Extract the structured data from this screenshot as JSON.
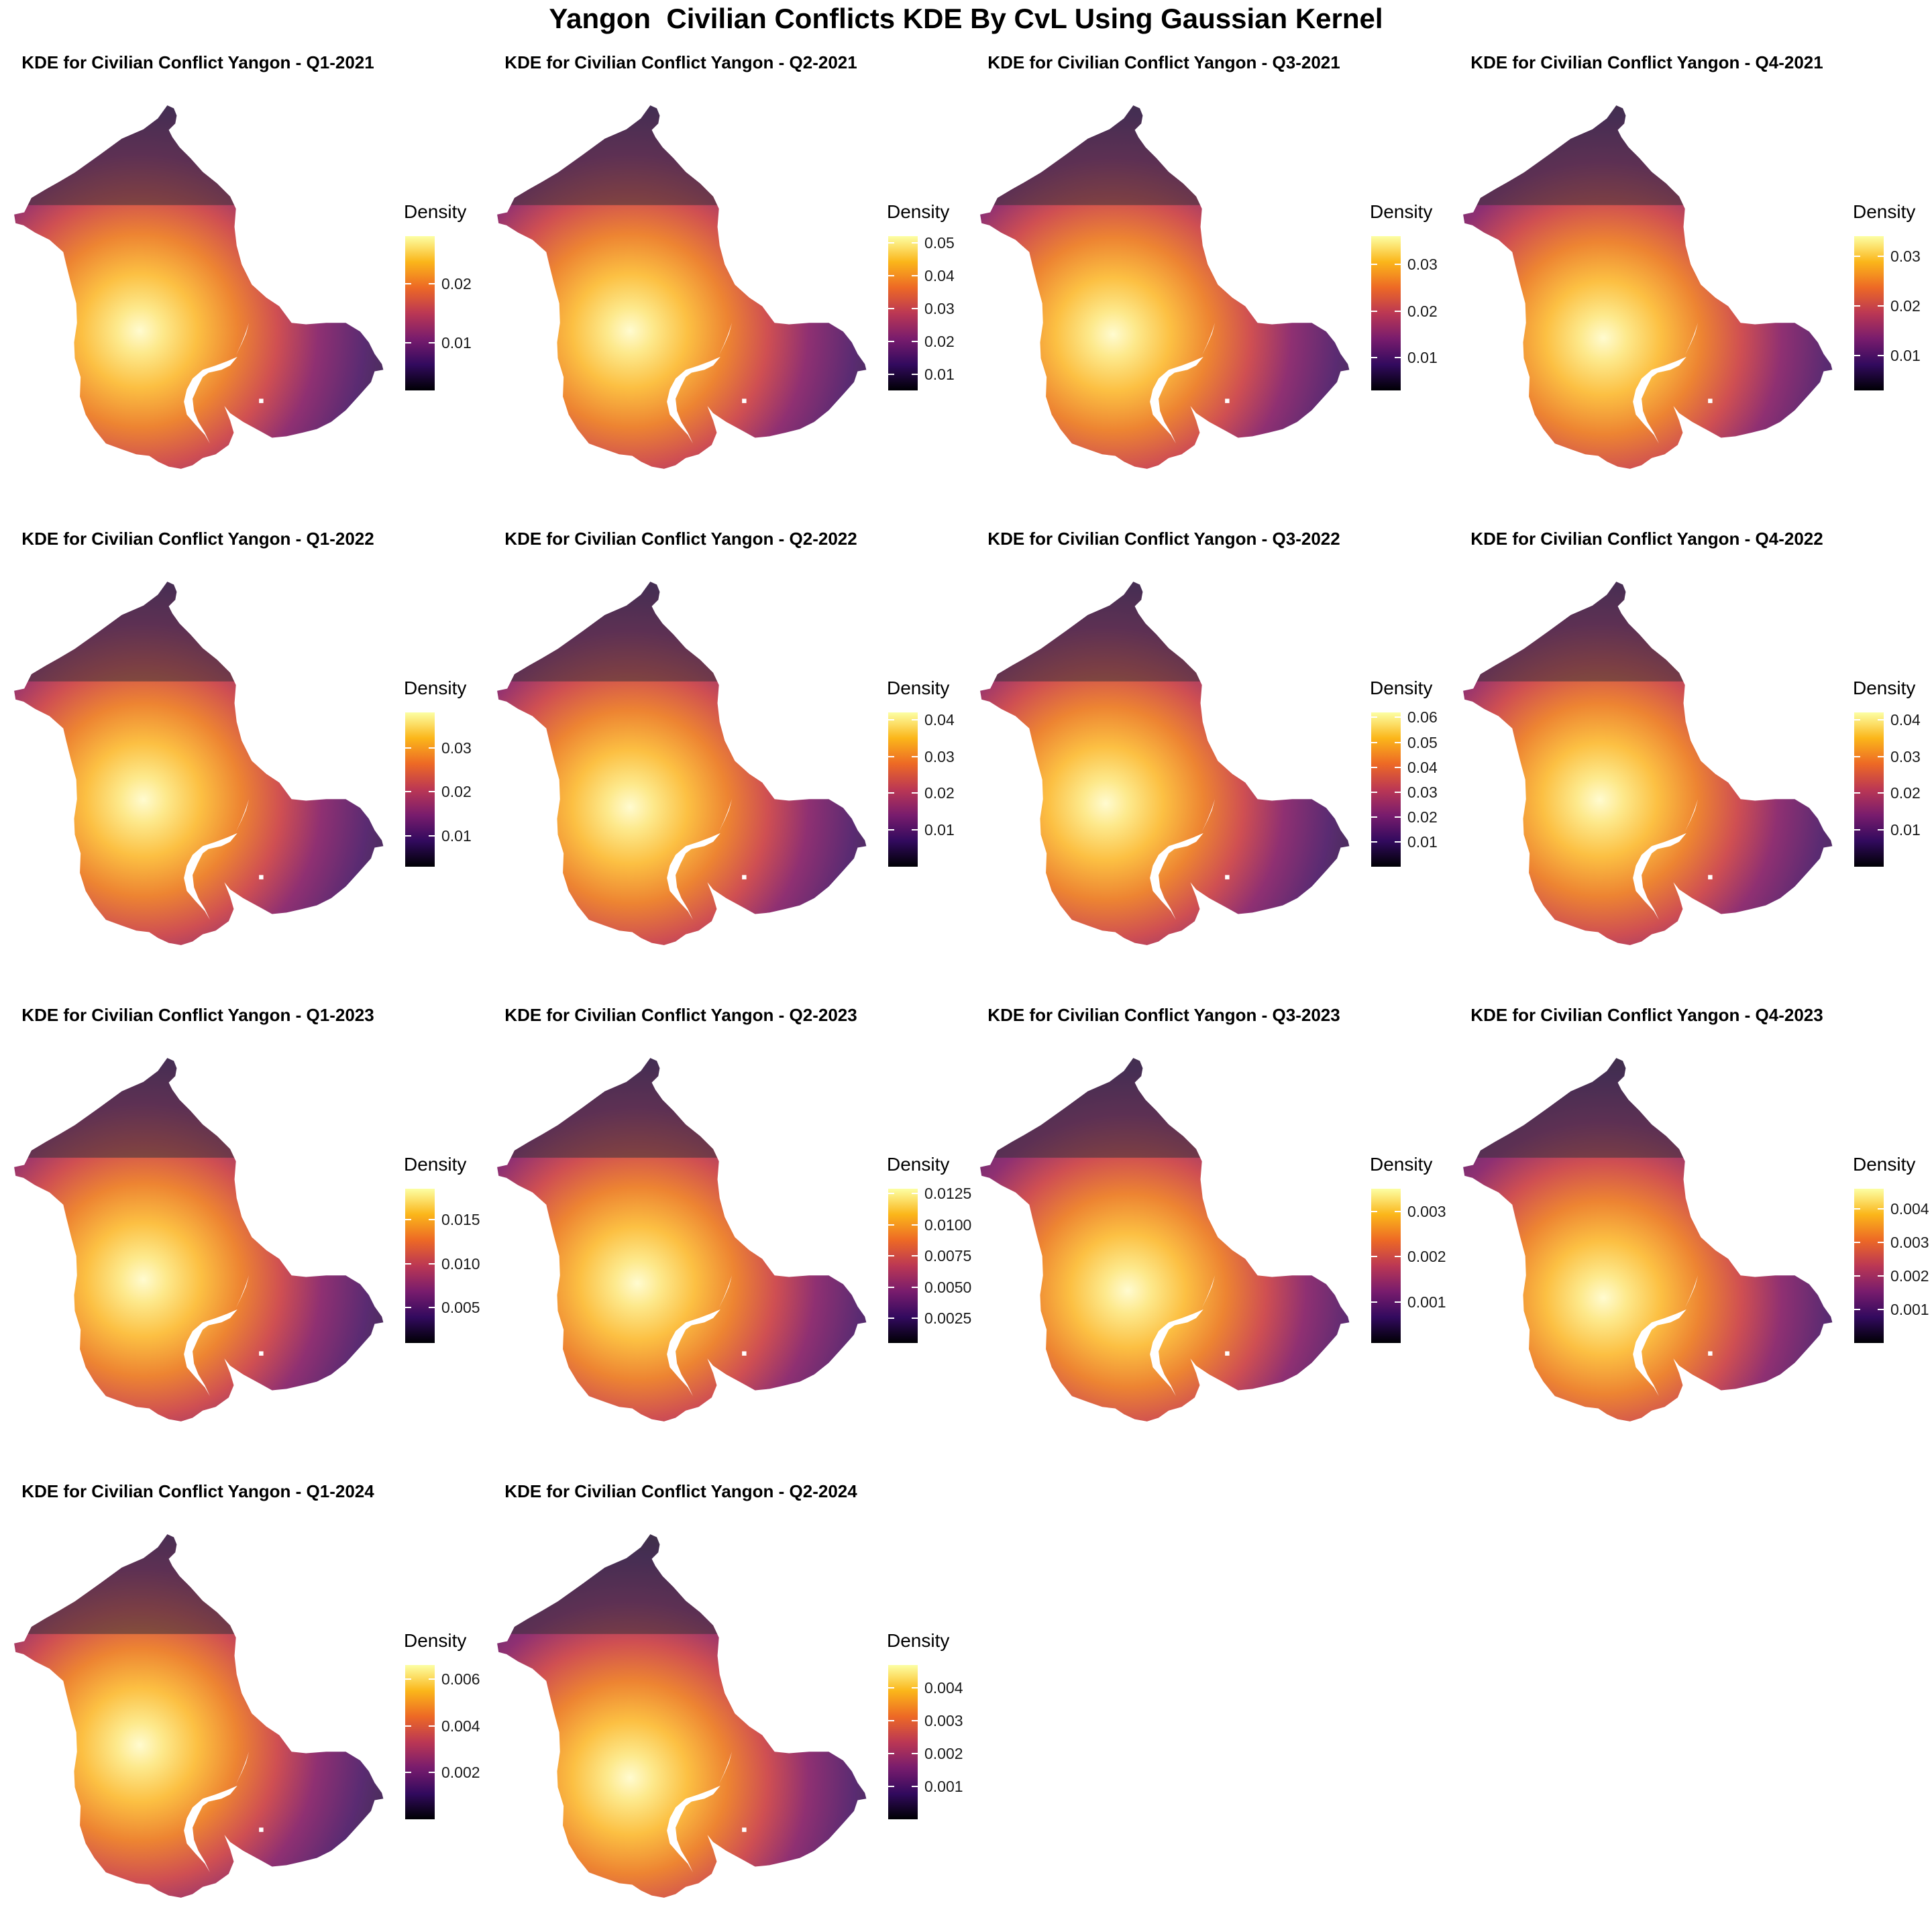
{
  "title": "Yangon  Civilian Conflicts KDE By CvL Using Gaussian Kernel",
  "colors": {
    "palette": [
      "#000004",
      "#320a5e",
      "#781c6d",
      "#bb3754",
      "#ed6925",
      "#fbb61a",
      "#fcffa4"
    ],
    "background": "#ffffff"
  },
  "chart_data": [
    {
      "type": "heatmap",
      "title": "KDE for Civilian Conflict Yangon - Q1-2021",
      "legend_title": "Density",
      "ticks": [
        "0.01",
        "0.02"
      ],
      "range": [
        0.002,
        0.028
      ],
      "hotspot": [
        0.34,
        0.62
      ]
    },
    {
      "type": "heatmap",
      "title": "KDE for Civilian Conflict Yangon - Q2-2021",
      "legend_title": "Density",
      "ticks": [
        "0.01",
        "0.02",
        "0.03",
        "0.04",
        "0.05"
      ],
      "range": [
        0.005,
        0.052
      ],
      "hotspot": [
        0.36,
        0.62
      ]
    },
    {
      "type": "heatmap",
      "title": "KDE for Civilian Conflict Yangon - Q3-2021",
      "legend_title": "Density",
      "ticks": [
        "0.01",
        "0.02",
        "0.03"
      ],
      "range": [
        0.003,
        0.036
      ],
      "hotspot": [
        0.36,
        0.63
      ]
    },
    {
      "type": "heatmap",
      "title": "KDE for Civilian Conflict Yangon - Q4-2021",
      "legend_title": "Density",
      "ticks": [
        "0.01",
        "0.02",
        "0.03"
      ],
      "range": [
        0.003,
        0.034
      ],
      "hotspot": [
        0.38,
        0.64
      ]
    },
    {
      "type": "heatmap",
      "title": "KDE for Civilian Conflict Yangon - Q1-2022",
      "legend_title": "Density",
      "ticks": [
        "0.01",
        "0.02",
        "0.03"
      ],
      "range": [
        0.003,
        0.038
      ],
      "hotspot": [
        0.35,
        0.6
      ]
    },
    {
      "type": "heatmap",
      "title": "KDE for Civilian Conflict Yangon - Q2-2022",
      "legend_title": "Density",
      "ticks": [
        "0.01",
        "0.02",
        "0.03",
        "0.04"
      ],
      "range": [
        0.0,
        0.042
      ],
      "hotspot": [
        0.36,
        0.62
      ]
    },
    {
      "type": "heatmap",
      "title": "KDE for Civilian Conflict Yangon - Q3-2022",
      "legend_title": "Density",
      "ticks": [
        "0.01",
        "0.02",
        "0.03",
        "0.04",
        "0.05",
        "0.06"
      ],
      "range": [
        0.0,
        0.062
      ],
      "hotspot": [
        0.34,
        0.61
      ]
    },
    {
      "type": "heatmap",
      "title": "KDE for Civilian Conflict Yangon - Q4-2022",
      "legend_title": "Density",
      "ticks": [
        "0.01",
        "0.02",
        "0.03",
        "0.04"
      ],
      "range": [
        0.0,
        0.042
      ],
      "hotspot": [
        0.37,
        0.6
      ]
    },
    {
      "type": "heatmap",
      "title": "KDE for Civilian Conflict Yangon - Q1-2023",
      "legend_title": "Density",
      "ticks": [
        "0.005",
        "0.010",
        "0.015"
      ],
      "range": [
        0.001,
        0.0185
      ],
      "hotspot": [
        0.35,
        0.61
      ]
    },
    {
      "type": "heatmap",
      "title": "KDE for Civilian Conflict Yangon - Q2-2023",
      "legend_title": "Density",
      "ticks": [
        "0.0025",
        "0.0050",
        "0.0075",
        "0.0100",
        "0.0125"
      ],
      "range": [
        0.0005,
        0.0129
      ],
      "hotspot": [
        0.38,
        0.62
      ]
    },
    {
      "type": "heatmap",
      "title": "KDE for Civilian Conflict Yangon - Q3-2023",
      "legend_title": "Density",
      "ticks": [
        "0.001",
        "0.002",
        "0.003"
      ],
      "range": [
        0.0001,
        0.0035
      ],
      "hotspot": [
        0.4,
        0.64
      ]
    },
    {
      "type": "heatmap",
      "title": "KDE for Civilian Conflict Yangon - Q4-2023",
      "legend_title": "Density",
      "ticks": [
        "0.001",
        "0.002",
        "0.003",
        "0.004"
      ],
      "range": [
        0.0,
        0.0046
      ],
      "hotspot": [
        0.38,
        0.66
      ]
    },
    {
      "type": "heatmap",
      "title": "KDE for Civilian Conflict Yangon - Q1-2024",
      "legend_title": "Density",
      "ticks": [
        "0.002",
        "0.004",
        "0.006"
      ],
      "range": [
        0.0,
        0.0066
      ],
      "hotspot": [
        0.34,
        0.58
      ]
    },
    {
      "type": "heatmap",
      "title": "KDE for Civilian Conflict Yangon - Q2-2024",
      "legend_title": "Density",
      "ticks": [
        "0.001",
        "0.002",
        "0.003",
        "0.004"
      ],
      "range": [
        0.0,
        0.0047
      ],
      "hotspot": [
        0.36,
        0.67
      ]
    }
  ]
}
